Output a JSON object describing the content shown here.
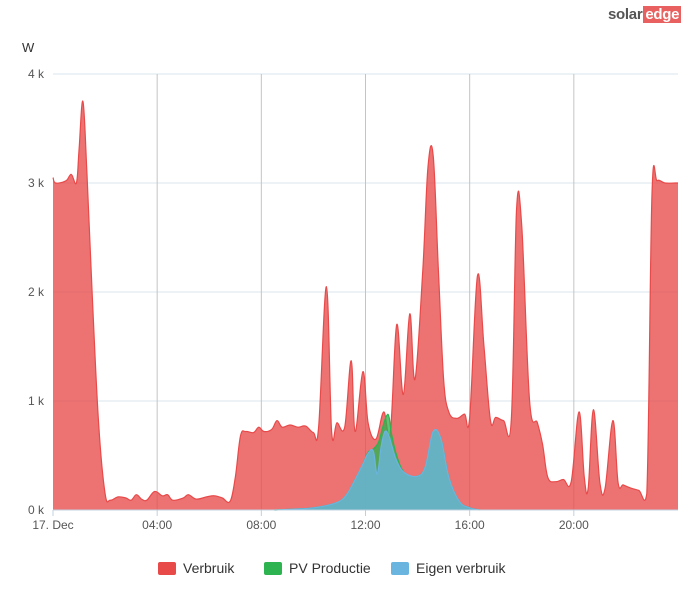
{
  "brand": {
    "part1": "solar",
    "part2": "edge"
  },
  "chart_data": {
    "type": "area",
    "ylabel": "W",
    "ylim": [
      0,
      4000
    ],
    "yticks": [
      0,
      1000,
      2000,
      3000,
      4000
    ],
    "ytick_labels": [
      "0 k",
      "1 k",
      "2 k",
      "3 k",
      "4 k"
    ],
    "xlim": [
      0,
      24
    ],
    "xticks": [
      0,
      4,
      8,
      12,
      16,
      20
    ],
    "xtick_labels": [
      "17. Dec",
      "04:00",
      "08:00",
      "12:00",
      "16:00",
      "20:00"
    ],
    "grid": true,
    "legend_position": "bottom-center",
    "series": [
      {
        "name": "Verbruik",
        "color": "#e84a4a",
        "points": [
          [
            0,
            3050
          ],
          [
            0.1,
            3000
          ],
          [
            0.5,
            3020
          ],
          [
            0.7,
            3080
          ],
          [
            0.9,
            3000
          ],
          [
            1.0,
            3300
          ],
          [
            1.15,
            3750
          ],
          [
            1.3,
            3100
          ],
          [
            1.5,
            2000
          ],
          [
            1.75,
            800
          ],
          [
            2.0,
            150
          ],
          [
            2.2,
            90
          ],
          [
            2.5,
            120
          ],
          [
            2.8,
            110
          ],
          [
            3.0,
            90
          ],
          [
            3.2,
            140
          ],
          [
            3.4,
            100
          ],
          [
            3.6,
            90
          ],
          [
            3.9,
            170
          ],
          [
            4.2,
            130
          ],
          [
            4.4,
            140
          ],
          [
            4.6,
            90
          ],
          [
            5.0,
            110
          ],
          [
            5.2,
            140
          ],
          [
            5.5,
            100
          ],
          [
            5.9,
            120
          ],
          [
            6.2,
            130
          ],
          [
            6.5,
            110
          ],
          [
            6.8,
            80
          ],
          [
            7.0,
            300
          ],
          [
            7.2,
            680
          ],
          [
            7.4,
            720
          ],
          [
            7.7,
            710
          ],
          [
            7.9,
            760
          ],
          [
            8.1,
            720
          ],
          [
            8.4,
            740
          ],
          [
            8.6,
            820
          ],
          [
            8.8,
            760
          ],
          [
            9.1,
            780
          ],
          [
            9.4,
            760
          ],
          [
            9.7,
            770
          ],
          [
            10.0,
            710
          ],
          [
            10.2,
            760
          ],
          [
            10.5,
            2050
          ],
          [
            10.7,
            720
          ],
          [
            10.9,
            800
          ],
          [
            11.2,
            760
          ],
          [
            11.45,
            1370
          ],
          [
            11.6,
            720
          ],
          [
            11.9,
            1270
          ],
          [
            12.1,
            800
          ],
          [
            12.4,
            650
          ],
          [
            12.7,
            900
          ],
          [
            12.95,
            700
          ],
          [
            13.2,
            1700
          ],
          [
            13.45,
            1060
          ],
          [
            13.7,
            1800
          ],
          [
            13.9,
            1200
          ],
          [
            14.2,
            2200
          ],
          [
            14.4,
            3150
          ],
          [
            14.6,
            3250
          ],
          [
            14.8,
            2200
          ],
          [
            15.0,
            1200
          ],
          [
            15.2,
            900
          ],
          [
            15.5,
            840
          ],
          [
            15.8,
            880
          ],
          [
            16.0,
            850
          ],
          [
            16.3,
            2150
          ],
          [
            16.55,
            1500
          ],
          [
            16.8,
            820
          ],
          [
            17.0,
            850
          ],
          [
            17.3,
            820
          ],
          [
            17.6,
            830
          ],
          [
            17.8,
            2750
          ],
          [
            18.0,
            2600
          ],
          [
            18.3,
            1000
          ],
          [
            18.6,
            800
          ],
          [
            18.8,
            600
          ],
          [
            19.0,
            300
          ],
          [
            19.3,
            260
          ],
          [
            19.6,
            280
          ],
          [
            19.9,
            260
          ],
          [
            20.2,
            900
          ],
          [
            20.4,
            300
          ],
          [
            20.55,
            200
          ],
          [
            20.75,
            920
          ],
          [
            21.0,
            250
          ],
          [
            21.2,
            200
          ],
          [
            21.5,
            820
          ],
          [
            21.7,
            250
          ],
          [
            21.9,
            230
          ],
          [
            22.2,
            200
          ],
          [
            22.5,
            180
          ],
          [
            22.8,
            150
          ],
          [
            23.0,
            2900
          ],
          [
            23.2,
            3020
          ],
          [
            23.5,
            3000
          ],
          [
            23.9,
            3000
          ],
          [
            24,
            3000
          ]
        ]
      },
      {
        "name": "PV Productie",
        "color": "#2db34f",
        "points": [
          [
            8.5,
            0
          ],
          [
            9.5,
            10
          ],
          [
            10.0,
            20
          ],
          [
            10.5,
            40
          ],
          [
            11.0,
            80
          ],
          [
            11.3,
            150
          ],
          [
            11.6,
            280
          ],
          [
            11.9,
            420
          ],
          [
            12.1,
            530
          ],
          [
            12.3,
            560
          ],
          [
            12.5,
            620
          ],
          [
            12.65,
            750
          ],
          [
            12.8,
            860
          ],
          [
            12.9,
            860
          ],
          [
            13.0,
            700
          ],
          [
            13.2,
            500
          ],
          [
            13.5,
            340
          ],
          [
            14.0,
            310
          ],
          [
            14.3,
            400
          ],
          [
            14.6,
            700
          ],
          [
            14.9,
            650
          ],
          [
            15.2,
            300
          ],
          [
            15.6,
            80
          ],
          [
            16.0,
            20
          ],
          [
            16.4,
            0
          ]
        ]
      },
      {
        "name": "Eigen verbruik",
        "color": "#6ab5e0",
        "points": [
          [
            8.5,
            0
          ],
          [
            9.5,
            10
          ],
          [
            10.0,
            20
          ],
          [
            10.5,
            40
          ],
          [
            11.0,
            80
          ],
          [
            11.3,
            150
          ],
          [
            11.6,
            280
          ],
          [
            11.9,
            420
          ],
          [
            12.1,
            520
          ],
          [
            12.3,
            540
          ],
          [
            12.45,
            330
          ],
          [
            12.6,
            580
          ],
          [
            12.75,
            720
          ],
          [
            12.9,
            680
          ],
          [
            13.0,
            600
          ],
          [
            13.2,
            450
          ],
          [
            13.5,
            340
          ],
          [
            14.0,
            310
          ],
          [
            14.3,
            400
          ],
          [
            14.6,
            720
          ],
          [
            14.9,
            650
          ],
          [
            15.2,
            300
          ],
          [
            15.6,
            80
          ],
          [
            16.0,
            20
          ],
          [
            16.4,
            0
          ]
        ]
      }
    ]
  }
}
